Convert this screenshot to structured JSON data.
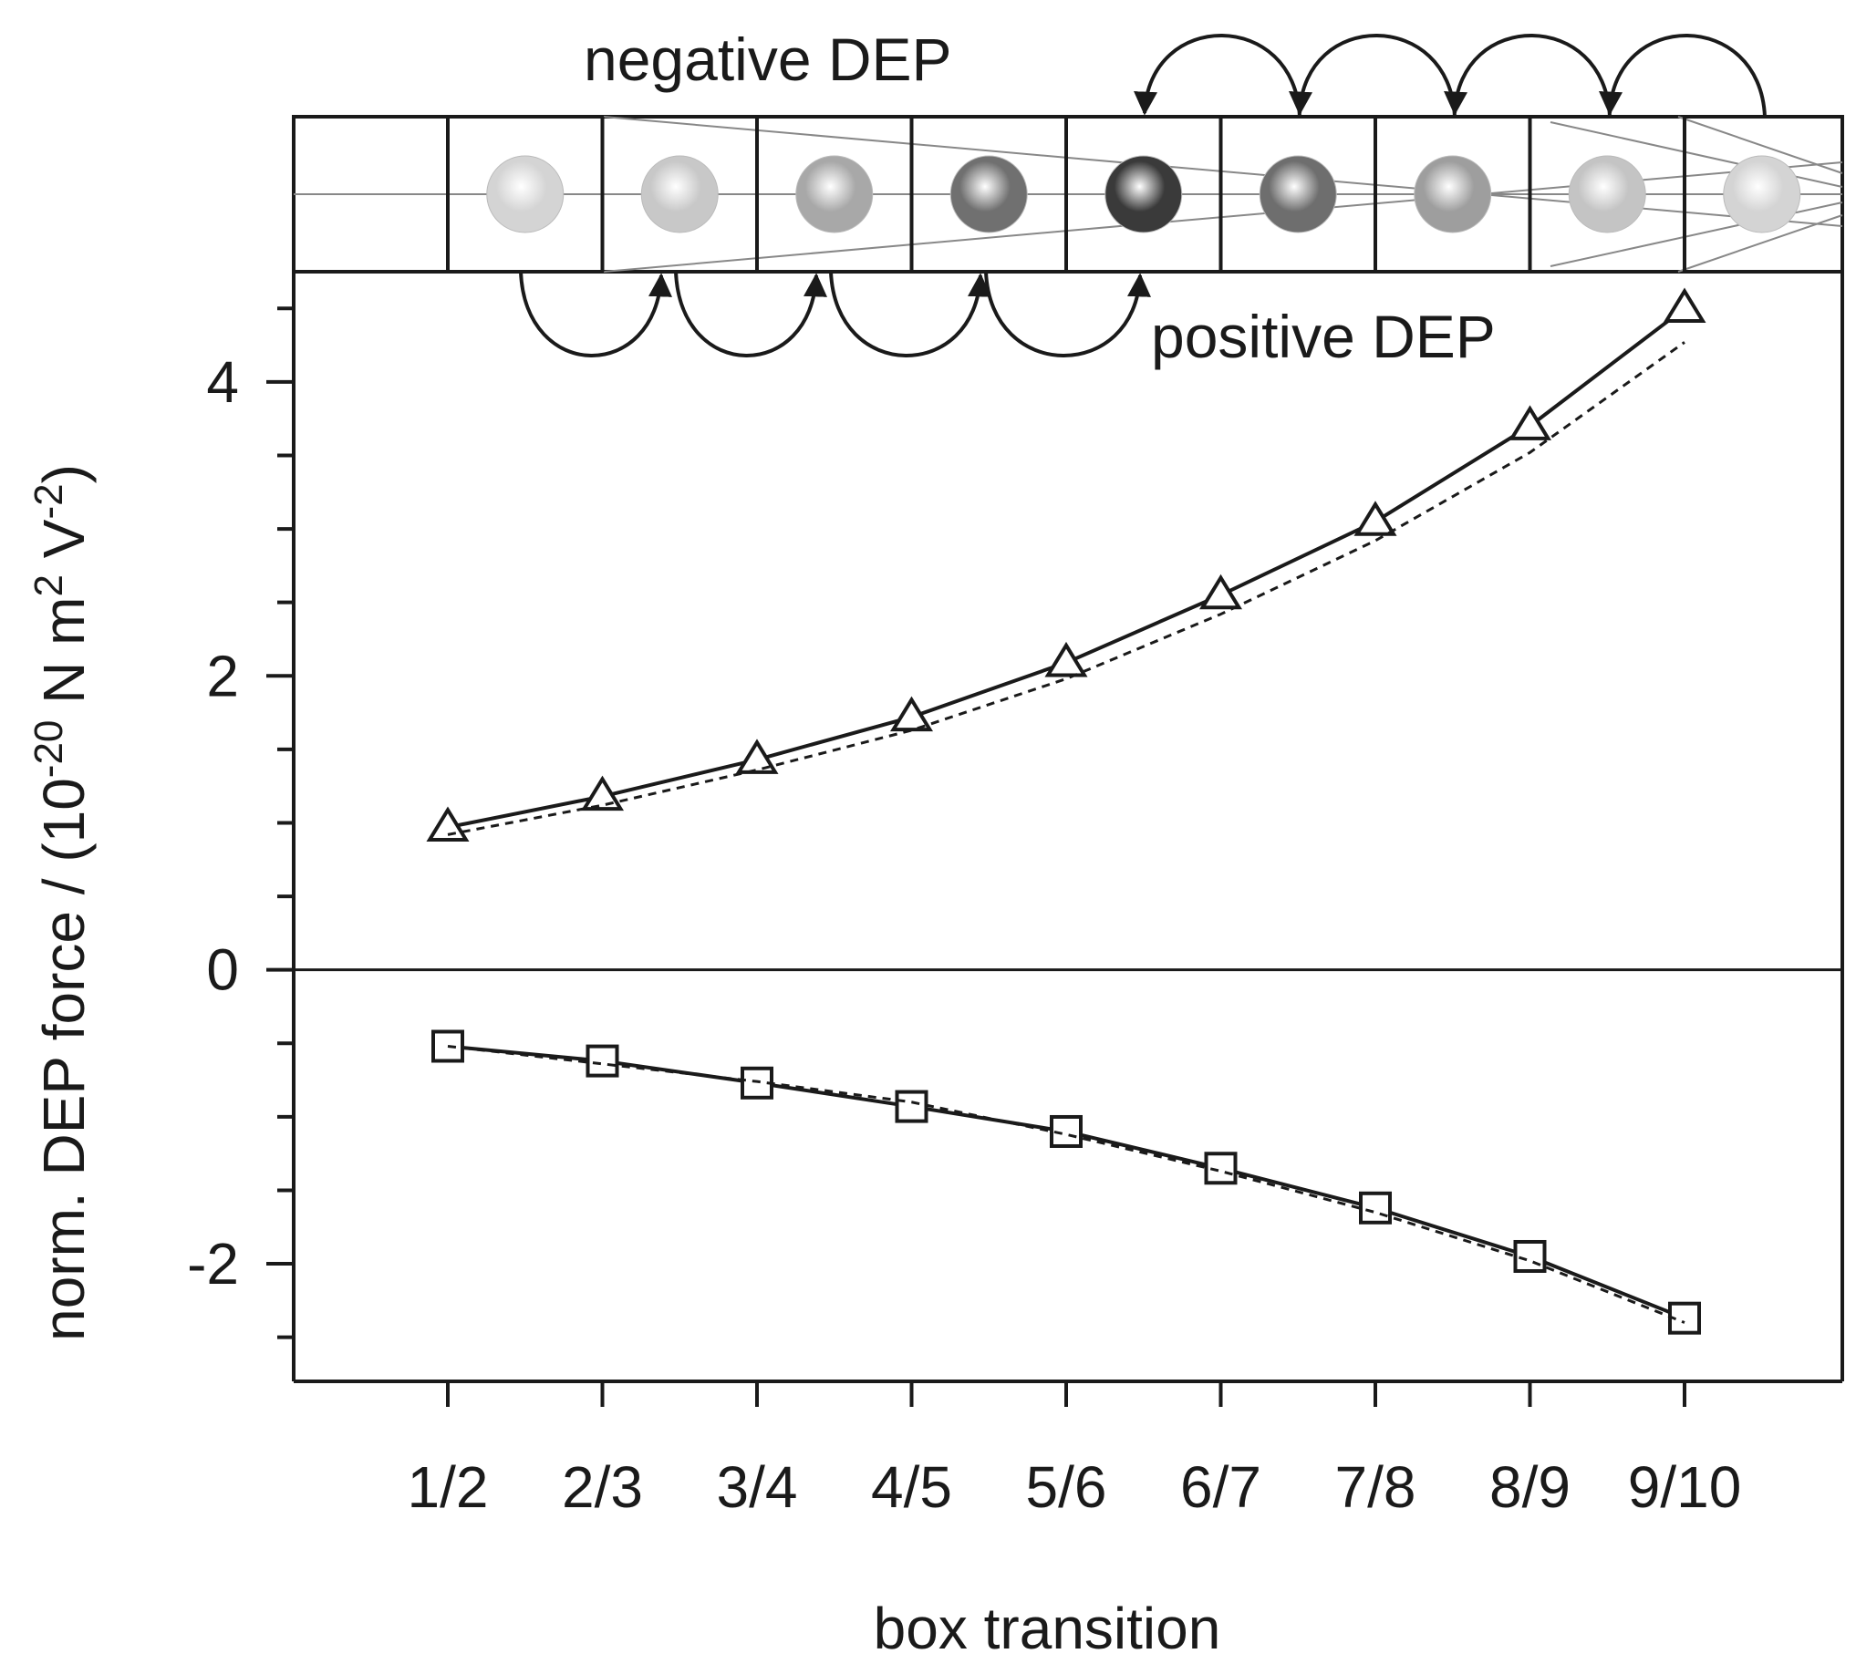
{
  "chart_data": {
    "type": "line",
    "title": "",
    "xlabel": "box transition",
    "ylabel": {
      "prefix": "norm. DEP force / (10",
      "exp1": "-20",
      "mid": " N m",
      "exp2": "2",
      "mid2": " V",
      "exp3": "-2",
      "suffix": ")"
    },
    "categories": [
      "1/2",
      "2/3",
      "3/4",
      "4/5",
      "5/6",
      "6/7",
      "7/8",
      "8/9",
      "9/10"
    ],
    "ylim": [
      -2.8,
      4.75
    ],
    "yticks_major": [
      -2,
      0,
      2,
      4
    ],
    "yticks_minor": [
      -2.5,
      -1.5,
      -1,
      -0.5,
      0.5,
      1,
      1.5,
      2.5,
      3,
      3.5,
      4.5
    ],
    "zero_line": true,
    "series": [
      {
        "name": "positive DEP",
        "marker": "triangle",
        "line": "solid",
        "values": [
          0.97,
          1.18,
          1.43,
          1.72,
          2.09,
          2.55,
          3.05,
          3.7,
          4.5
        ]
      },
      {
        "name": "positive DEP (dashed)",
        "marker": "none",
        "line": "dashed",
        "values": [
          0.92,
          1.12,
          1.36,
          1.63,
          1.98,
          2.42,
          2.92,
          3.52,
          4.27
        ]
      },
      {
        "name": "negative DEP",
        "marker": "square",
        "line": "solid",
        "values": [
          -0.52,
          -0.62,
          -0.77,
          -0.93,
          -1.1,
          -1.35,
          -1.62,
          -1.95,
          -2.37
        ]
      },
      {
        "name": "negative DEP (dashed)",
        "marker": "none",
        "line": "dashed",
        "values": [
          -0.52,
          -0.64,
          -0.76,
          -0.9,
          -1.12,
          -1.37,
          -1.65,
          -1.98,
          -2.4
        ]
      }
    ],
    "annotations": {
      "negative": "negative DEP",
      "positive": "positive DEP"
    },
    "sphere_shades": [
      "#d4d4d4",
      "#c8c8c8",
      "#a8a8a8",
      "#707070",
      "#3a3a3a",
      "#6e6e6e",
      "#9e9e9e",
      "#c4c4c4",
      "#d4d4d4"
    ]
  }
}
